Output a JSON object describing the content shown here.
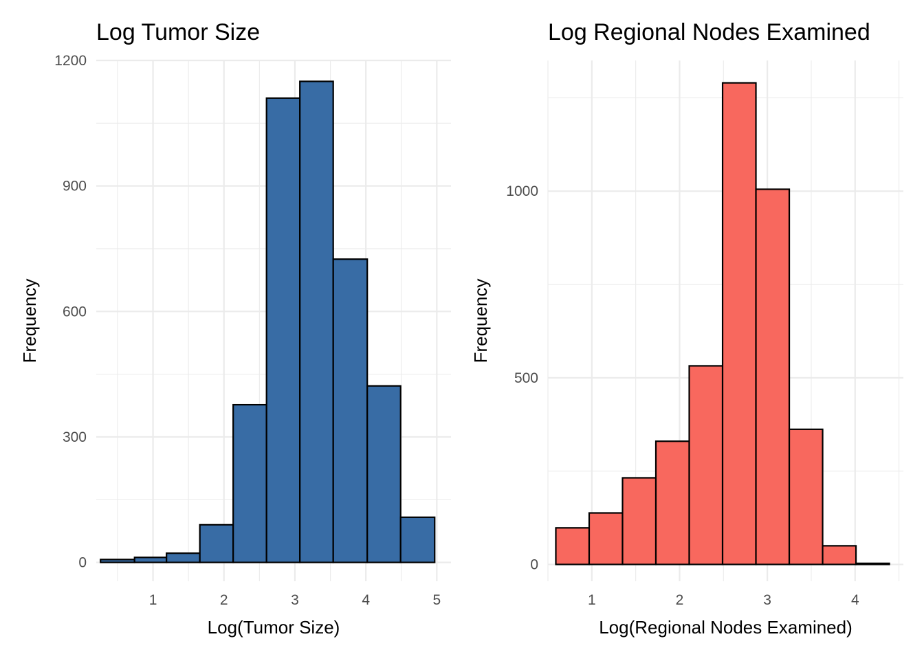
{
  "colors": {
    "left_fill": "#386CA5",
    "right_fill": "#F8685E",
    "bar_outline": "#000000",
    "grid": "#EBEBEB",
    "tick_text": "#4D4D4D"
  },
  "chart_data": [
    {
      "type": "bar",
      "title": "Log Tumor Size",
      "xlabel": "Log(Tumor Size)",
      "ylabel": "Frequency",
      "xlim": [
        0.2,
        5.2
      ],
      "ylim": [
        -45,
        1200
      ],
      "x_ticks": [
        1,
        2,
        3,
        4,
        5
      ],
      "y_ticks": [
        0,
        300,
        600,
        900,
        1200
      ],
      "grid": true,
      "bins": [
        {
          "x0": 0.26,
          "x1": 0.74,
          "count": 7
        },
        {
          "x0": 0.74,
          "x1": 1.19,
          "count": 12
        },
        {
          "x0": 1.19,
          "x1": 1.66,
          "count": 22
        },
        {
          "x0": 1.66,
          "x1": 2.13,
          "count": 90
        },
        {
          "x0": 2.13,
          "x1": 2.6,
          "count": 377
        },
        {
          "x0": 2.6,
          "x1": 3.07,
          "count": 1110
        },
        {
          "x0": 3.07,
          "x1": 3.54,
          "count": 1150
        },
        {
          "x0": 3.54,
          "x1": 4.02,
          "count": 725
        },
        {
          "x0": 4.02,
          "x1": 4.49,
          "count": 422
        },
        {
          "x0": 4.49,
          "x1": 4.97,
          "count": 108
        }
      ]
    },
    {
      "type": "bar",
      "title": "Log Regional Nodes Examined",
      "xlabel": "Log(Regional Nodes Examined)",
      "ylabel": "Frequency",
      "xlim": [
        0.5,
        4.55
      ],
      "ylim": [
        -45,
        1350
      ],
      "x_ticks": [
        1,
        2,
        3,
        4
      ],
      "y_ticks": [
        0,
        500,
        1000
      ],
      "grid": true,
      "bins": [
        {
          "x0": 0.59,
          "x1": 0.97,
          "count": 98
        },
        {
          "x0": 0.97,
          "x1": 1.35,
          "count": 138
        },
        {
          "x0": 1.35,
          "x1": 1.73,
          "count": 232
        },
        {
          "x0": 1.73,
          "x1": 2.11,
          "count": 330
        },
        {
          "x0": 2.11,
          "x1": 2.49,
          "count": 532
        },
        {
          "x0": 2.49,
          "x1": 2.87,
          "count": 1290
        },
        {
          "x0": 2.87,
          "x1": 3.25,
          "count": 1005
        },
        {
          "x0": 3.25,
          "x1": 3.63,
          "count": 362
        },
        {
          "x0": 3.63,
          "x1": 4.01,
          "count": 50
        },
        {
          "x0": 4.01,
          "x1": 4.39,
          "count": 3
        }
      ]
    }
  ]
}
